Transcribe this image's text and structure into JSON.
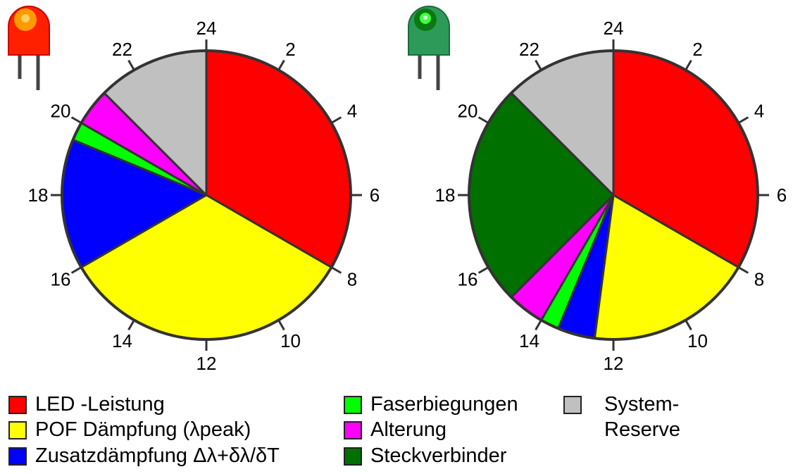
{
  "chart_data": {
    "type": "pie",
    "categories": [
      "LED -Leistung",
      "POF Dämpfung (λpeak)",
      "Zusatzdämpfung Δλ+δλ/δT",
      "Faserbiegungen",
      "Alterung",
      "Steckverbinder",
      "System-Reserve"
    ],
    "colors": [
      "#ff0000",
      "#ffff00",
      "#0000ff",
      "#00ff00",
      "#ff00ff",
      "#007000",
      "#c0c0c0"
    ],
    "lim": [
      0,
      24
    ],
    "ticks": [
      2,
      4,
      6,
      8,
      10,
      12,
      14,
      16,
      18,
      20,
      22,
      24
    ],
    "pies": [
      {
        "values": [
          8,
          8,
          3.5,
          0.5,
          1,
          0,
          3
        ]
      },
      {
        "values": [
          8,
          4.5,
          1,
          0.5,
          1,
          6,
          3
        ]
      }
    ]
  }
}
